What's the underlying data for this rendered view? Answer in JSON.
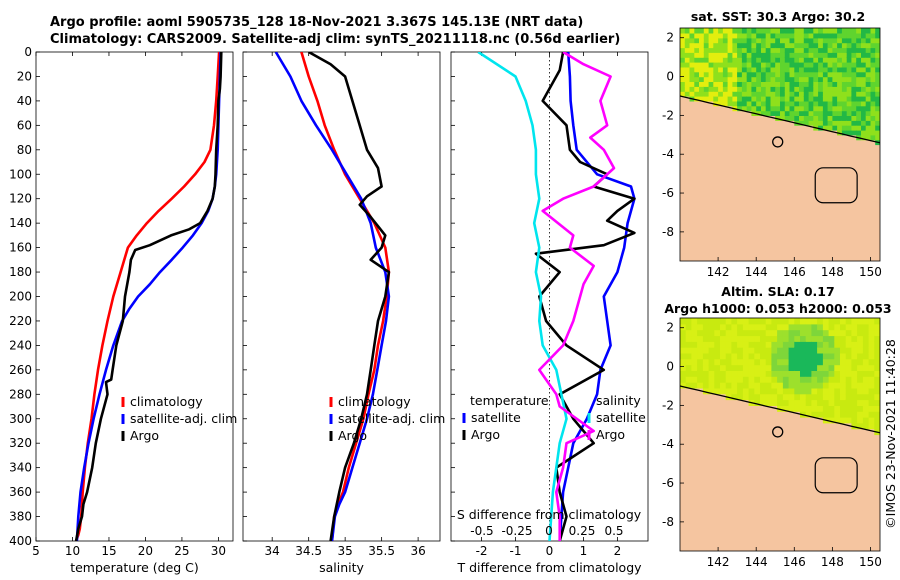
{
  "header": {
    "line1": "Argo profile: aoml 5905735_128 18-Nov-2021 3.367S 145.13E (NRT data)",
    "line2": "Climatology: CARS2009. Satellite-adj clim: synTS_20211118.nc (0.56d earlier)"
  },
  "colors": {
    "climatology": "#ff0000",
    "satellite": "#0000ff",
    "argo": "#000000",
    "sal_satellite": "#00e5ee",
    "sal_argo": "#ff00ff",
    "land": "#f5c5a0"
  },
  "chart_data": [
    {
      "id": "temperature",
      "type": "line",
      "xlabel": "temperature (deg C)",
      "ylabel": "",
      "xlim": [
        5,
        32
      ],
      "ylim": [
        400,
        0
      ],
      "xticks": [
        "5",
        "10",
        "15",
        "20",
        "25",
        "30"
      ],
      "xtick_values": [
        5,
        10,
        15,
        20,
        25,
        30
      ],
      "yticks": [
        "0",
        "20",
        "40",
        "60",
        "80",
        "100",
        "120",
        "140",
        "160",
        "180",
        "200",
        "220",
        "240",
        "260",
        "280",
        "300",
        "320",
        "340",
        "360",
        "380",
        "400"
      ],
      "ytick_values": [
        0,
        20,
        40,
        60,
        80,
        100,
        120,
        140,
        160,
        180,
        200,
        220,
        240,
        260,
        280,
        300,
        320,
        340,
        360,
        380,
        400
      ],
      "legend": [
        "climatology",
        "satellite-adj. clim",
        "Argo"
      ],
      "series": [
        {
          "name": "climatology",
          "color": "#ff0000",
          "x": [
            30.1,
            30.0,
            29.9,
            29.7,
            29.4,
            28.9,
            28.1,
            26.8,
            25.3,
            23.6,
            21.8,
            20.2,
            18.8,
            17.6,
            16.6,
            15.6,
            14.8,
            14.1,
            13.5,
            13.0,
            12.6,
            12.1,
            11.7,
            11.4,
            11.2,
            11.0,
            10.8,
            10.5,
            10.4
          ],
          "y": [
            0,
            10,
            20,
            40,
            60,
            80,
            90,
            100,
            110,
            120,
            130,
            140,
            150,
            160,
            180,
            200,
            220,
            240,
            260,
            280,
            300,
            320,
            340,
            360,
            380,
            390,
            395,
            400,
            400
          ]
        },
        {
          "name": "satellite-adj. clim",
          "color": "#0000ff",
          "x": [
            30.3,
            30.2,
            30.1,
            30.0,
            29.9,
            29.7,
            29.5,
            29.2,
            28.6,
            27.7,
            26.5,
            25.1,
            23.6,
            22.0,
            20.6,
            19.0,
            17.8,
            16.8,
            15.6,
            14.6,
            13.7,
            12.9,
            12.2,
            11.6,
            11.1,
            10.8,
            10.6
          ],
          "y": [
            0,
            20,
            40,
            60,
            80,
            100,
            110,
            120,
            130,
            140,
            150,
            160,
            170,
            180,
            190,
            200,
            210,
            220,
            240,
            260,
            280,
            300,
            320,
            340,
            360,
            380,
            400
          ]
        },
        {
          "name": "Argo",
          "color": "#000000",
          "x": [
            30.4,
            30.3,
            30.2,
            30.0,
            29.9,
            29.7,
            29.6,
            29.5,
            29.2,
            28.5,
            27.5,
            26.0,
            23.5,
            20.6,
            18.6,
            18.0,
            17.8,
            17.2,
            16.9,
            16.0,
            15.5,
            15.3,
            14.6,
            14.8,
            13.9,
            13.2,
            12.7,
            12.0,
            11.5,
            11.3,
            10.8,
            10.5
          ],
          "y": [
            0,
            20,
            30,
            40,
            60,
            80,
            100,
            110,
            120,
            130,
            140,
            145,
            150,
            158,
            162,
            170,
            180,
            200,
            220,
            240,
            260,
            268,
            270,
            280,
            300,
            320,
            340,
            360,
            370,
            380,
            390,
            400
          ]
        }
      ]
    },
    {
      "id": "salinity",
      "type": "line",
      "xlabel": "salinity",
      "xlim": [
        33.6,
        36.3
      ],
      "ylim": [
        400,
        0
      ],
      "xticks": [
        "34",
        "34.5",
        "35",
        "35.5",
        "36"
      ],
      "xtick_values": [
        34,
        34.5,
        35,
        35.5,
        36
      ],
      "legend": [
        "climatology",
        "satellite-adj. clim",
        "Argo"
      ],
      "series": [
        {
          "name": "climatology",
          "color": "#ff0000",
          "x": [
            34.4,
            34.5,
            34.62,
            34.72,
            34.85,
            35.0,
            35.2,
            35.4,
            35.55,
            35.6,
            35.57,
            35.52,
            35.45,
            35.4,
            35.32,
            35.25,
            35.15,
            35.05,
            34.97,
            34.9,
            34.85,
            34.82
          ],
          "y": [
            0,
            20,
            40,
            60,
            80,
            100,
            120,
            140,
            160,
            180,
            200,
            220,
            240,
            260,
            280,
            300,
            320,
            340,
            360,
            370,
            380,
            400
          ]
        },
        {
          "name": "satellite-adj. clim",
          "color": "#0000ff",
          "x": [
            34.05,
            34.25,
            34.4,
            34.6,
            34.82,
            35.02,
            35.22,
            35.35,
            35.42,
            35.55,
            35.6,
            35.56,
            35.5,
            35.44,
            35.38,
            35.3,
            35.2,
            35.1,
            35.0,
            34.92,
            34.86,
            34.82
          ],
          "y": [
            0,
            20,
            40,
            60,
            80,
            100,
            120,
            140,
            160,
            180,
            200,
            220,
            240,
            260,
            280,
            300,
            320,
            340,
            360,
            370,
            380,
            400
          ]
        },
        {
          "name": "Argo",
          "color": "#000000",
          "x": [
            34.5,
            34.8,
            35.0,
            35.1,
            35.2,
            35.3,
            35.45,
            35.5,
            35.3,
            35.2,
            35.35,
            35.55,
            35.5,
            35.35,
            35.6,
            35.55,
            35.45,
            35.4,
            35.35,
            35.3,
            35.22,
            35.12,
            35.0,
            34.92,
            34.85,
            34.8
          ],
          "y": [
            0,
            10,
            20,
            40,
            60,
            80,
            95,
            110,
            118,
            125,
            135,
            150,
            160,
            170,
            180,
            200,
            220,
            240,
            260,
            280,
            300,
            320,
            340,
            360,
            380,
            400
          ]
        }
      ]
    },
    {
      "id": "differences",
      "type": "line",
      "xlabel": "T difference from climatology",
      "secondary_xlabel": "S difference from climatology",
      "xlim": [
        -2.9,
        2.9
      ],
      "ylim": [
        400,
        0
      ],
      "xticks": [
        "-2",
        "-1",
        "0",
        "1",
        "2"
      ],
      "xtick_values": [
        -2,
        -1,
        0,
        1,
        2
      ],
      "secondary_xticks": [
        "-0.5",
        "-0.25",
        "0",
        "0.25",
        "0.5"
      ],
      "legend_temperature_title": "temperature",
      "legend_salinity_title": "salinity",
      "legend_temperature": [
        "satellite",
        "Argo"
      ],
      "legend_salinity": [
        "satellite",
        "Argo"
      ],
      "series": [
        {
          "name": "T satellite",
          "color": "#0000ff",
          "x": [
            0.55,
            0.6,
            0.62,
            0.7,
            0.8,
            1.4,
            2.4,
            2.5,
            2.3,
            2.2,
            2.0,
            1.6,
            1.7,
            1.8,
            1.5,
            1.4,
            1.1,
            0.7,
            0.4,
            0.3
          ],
          "y": [
            0,
            20,
            40,
            60,
            80,
            100,
            110,
            120,
            140,
            160,
            180,
            200,
            220,
            240,
            260,
            280,
            300,
            320,
            360,
            400
          ]
        },
        {
          "name": "T Argo",
          "color": "#000000",
          "x": [
            0.4,
            0.3,
            -0.2,
            0.5,
            0.6,
            0.9,
            1.7,
            1.3,
            2.5,
            2.0,
            1.7,
            2.5,
            1.6,
            -0.4,
            0.3,
            -0.3,
            -0.1,
            0.5,
            1.6,
            0.3,
            0.7,
            1.3,
            0.2,
            0.3,
            0.5,
            0.3
          ],
          "y": [
            0,
            15,
            40,
            60,
            80,
            90,
            100,
            110,
            120,
            130,
            138,
            148,
            158,
            165,
            180,
            200,
            220,
            240,
            260,
            280,
            300,
            320,
            340,
            360,
            380,
            400
          ]
        },
        {
          "name": "S satellite",
          "color": "#00e5ee",
          "x": [
            -2.1,
            -1.0,
            -0.7,
            -0.5,
            -0.4,
            -0.4,
            -0.3,
            -0.45,
            -0.3,
            -0.4,
            -0.25,
            -0.3,
            -0.2,
            0.2,
            0.5,
            0.3,
            0.1,
            0.0
          ],
          "y": [
            0,
            20,
            40,
            60,
            80,
            100,
            120,
            140,
            160,
            180,
            200,
            220,
            240,
            260,
            300,
            320,
            360,
            400
          ]
        },
        {
          "name": "S Argo",
          "color": "#ff00ff",
          "x": [
            0.4,
            1.0,
            1.8,
            1.5,
            1.7,
            1.2,
            1.6,
            1.9,
            1.3,
            0.4,
            -0.2,
            0.7,
            0.6,
            1.3,
            1.0,
            0.7,
            0.4,
            -0.3,
            0.2,
            0.3,
            1.3,
            0.5,
            0.4,
            0.2,
            0.3,
            0.3
          ],
          "y": [
            0,
            10,
            20,
            40,
            60,
            70,
            80,
            95,
            110,
            120,
            130,
            150,
            160,
            175,
            190,
            220,
            240,
            260,
            280,
            290,
            310,
            320,
            340,
            360,
            380,
            400
          ]
        }
      ]
    },
    {
      "id": "sst_map",
      "type": "heatmap",
      "title": "sat. SST: 30.3  Argo: 30.2",
      "xlim": [
        140,
        150.5
      ],
      "ylim": [
        -9.5,
        2.5
      ],
      "xticks": [
        "142",
        "144",
        "146",
        "148",
        "150"
      ],
      "xtick_values": [
        142,
        144,
        146,
        148,
        150
      ],
      "yticks": [
        "2",
        "0",
        "-2",
        "-4",
        "-6",
        "-8"
      ],
      "ytick_values": [
        2,
        0,
        -2,
        -4,
        -6,
        -8
      ],
      "argo_lon": 145.13,
      "argo_lat": -3.367
    },
    {
      "id": "sla_map",
      "type": "heatmap",
      "title1": "Altim. SLA: 0.17",
      "title2": "Argo h1000: 0.053  h2000: 0.053",
      "xlim": [
        140,
        150.5
      ],
      "ylim": [
        -9.5,
        2.5
      ],
      "xticks": [
        "142",
        "144",
        "146",
        "148",
        "150"
      ],
      "xtick_values": [
        142,
        144,
        146,
        148,
        150
      ],
      "yticks": [
        "2",
        "0",
        "-2",
        "-4",
        "-6",
        "-8"
      ],
      "ytick_values": [
        2,
        0,
        -2,
        -4,
        -6,
        -8
      ],
      "argo_lon": 145.13,
      "argo_lat": -3.367
    }
  ],
  "footer": {
    "copyright": "©IMOS 23-Nov-2021 11:40:28"
  }
}
